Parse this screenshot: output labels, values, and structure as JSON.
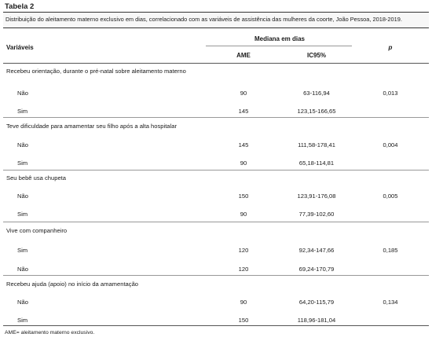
{
  "table_label": "Tabela 2",
  "caption": "Distribuição do aleitamento materno exclusivo em dias, correlacionado com as variáveis de assistência das mulheres da coorte, João Pessoa, 2018-2019.",
  "headers": {
    "variaveis": "Variáveis",
    "mediana": "Mediana em dias",
    "ame": "AME",
    "ic95": "IC95%",
    "p": "p"
  },
  "groups": [
    {
      "title": "Recebeu orientação, durante o pré-natal sobre aleitamento materno",
      "p": "0,013",
      "rows": [
        {
          "label": "Não",
          "ame": "90",
          "ic": "63-116,94"
        },
        {
          "label": "Sim",
          "ame": "145",
          "ic": "123,15-166,65"
        }
      ]
    },
    {
      "title": "Teve dificuldade para amamentar seu filho após a alta hospitalar",
      "p": "0,004",
      "rows": [
        {
          "label": "Não",
          "ame": "145",
          "ic": "111,58-178,41"
        },
        {
          "label": "Sim",
          "ame": "90",
          "ic": "65,18-114,81"
        }
      ]
    },
    {
      "title": "Seu bebê usa chupeta",
      "p": "0,005",
      "rows": [
        {
          "label": "Não",
          "ame": "150",
          "ic": "123,91-176,08"
        },
        {
          "label": "Sim",
          "ame": "90",
          "ic": "77,39-102,60"
        }
      ]
    },
    {
      "title": "Vive com companheiro",
      "p": "0,185",
      "rows": [
        {
          "label": "Sim",
          "ame": "120",
          "ic": "92,34-147,66"
        },
        {
          "label": "Não",
          "ame": "120",
          "ic": "69,24-170,79"
        }
      ]
    },
    {
      "title": "Recebeu ajuda (apoio) no início da amamentação",
      "p": "0,134",
      "rows": [
        {
          "label": "Não",
          "ame": "90",
          "ic": "64,20-115,79"
        },
        {
          "label": "Sim",
          "ame": "150",
          "ic": "118,96-181,04"
        }
      ]
    }
  ],
  "footnote": "AME= aleitamento materno exclusivo."
}
